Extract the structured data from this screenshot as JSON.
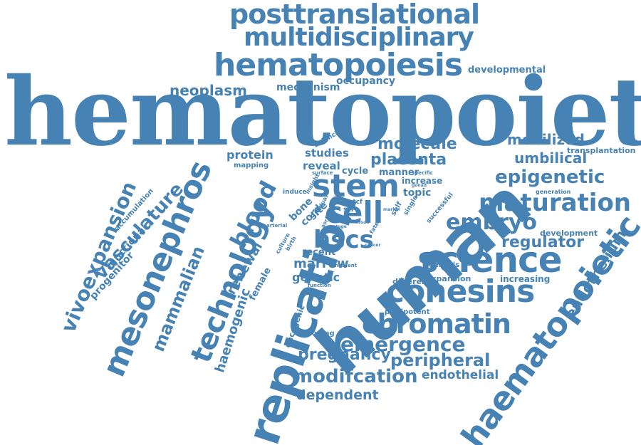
{
  "palette": {
    "word": "#4682b4",
    "background": "#ffffff"
  },
  "words": {
    "hematopoietic": "hematopoietic",
    "human": "human",
    "replication": "replication",
    "haematopoietic": "haematopoietic",
    "posttranslational": "posttranslational",
    "multidisciplinary": "multidisciplinary",
    "hematopoiesis": "hematopoiesis",
    "stem": "stem",
    "cell": "cell",
    "science": "science",
    "cohesins": "cohesins",
    "chromatin": "chromatin",
    "technology": "technology",
    "mesonephros": "mesonephros",
    "vivoexpansion": "vivoexpansion",
    "maturation": "maturation",
    "epigenetic": "epigenetic",
    "embryo": "embryo",
    "hscs": "hscs",
    "emergence": "emergence",
    "modifcation": "modifcation",
    "placenta": "placenta",
    "molecule": "molecule",
    "blood": "blood",
    "vasculature": "vasculature",
    "mammalian": "mammalian",
    "pregnancy": "pregnancy",
    "peripheral": "peripheral",
    "dependent": "dependent",
    "regulator": "regulator",
    "umbilical": "umbilical",
    "mobilized": "mobilized",
    "endothelium": "endothelium",
    "neoplasm": "neoplasm",
    "marrow": "marrow",
    "renewal": "renewal",
    "haemogenic": "haemogenic",
    "genetic": "genetic",
    "endothelial": "endothelial",
    "progenitor": "progenitor",
    "functional": "functional",
    "accumulation": "accumulation",
    "mechanism": "mechanism",
    "occupancy": "occupancy",
    "developmental": "developmental",
    "transplantation": "transplantation",
    "protein": "protein",
    "mapping": "mapping",
    "studies": "studies",
    "reveal": "reveal",
    "cycle": "cycle",
    "manner": "manner",
    "increase": "increase",
    "topic": "topic",
    "female": "female",
    "oncogenic": "oncogenic",
    "decoding": "decoding",
    "pluripotent": "pluripotent",
    "different": "different",
    "expansion": "expansion",
    "increasing": "increasing",
    "development": "development",
    "generation": "generation",
    "recent": "recent",
    "bone": "bone",
    "cord": "cord",
    "site": "site",
    "self": "self",
    "single": "single",
    "successful": "successful",
    "genesis": "genesis",
    "induce": "induce",
    "balancing": "balancing",
    "specific": "specific",
    "culture": "culture",
    "birth": "birth",
    "arterial": "arterial",
    "surface": "surface",
    "ctcf": "ctcf",
    "fate": "fate",
    "nascent": "nascent",
    "function": "function",
    "insight": "insight",
    "dual": "dual",
    "aorta": "aorta",
    "gonad": "gonad",
    "marker": "marker",
    "cancer": "cancer",
    "stage": "stage",
    "tissue": "tissue",
    "tie2": "tie2",
    "gata": "gata",
    "str": "str"
  }
}
